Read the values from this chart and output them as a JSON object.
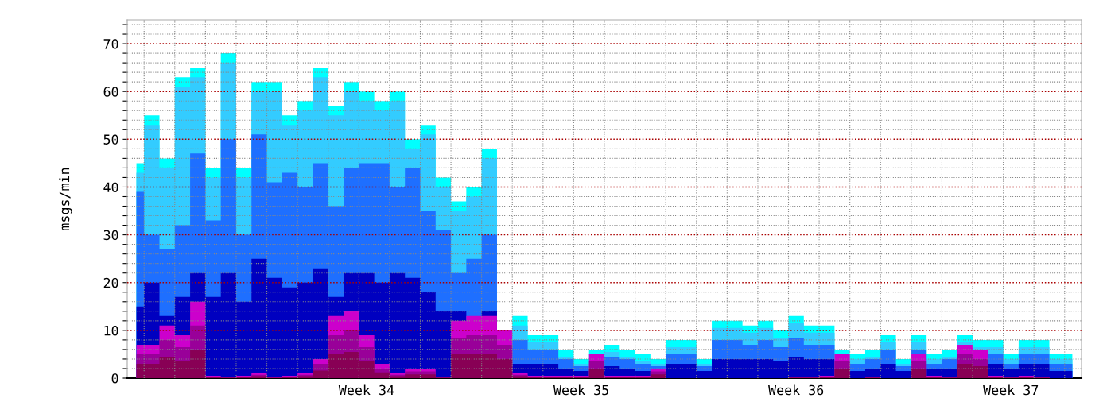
{
  "chart_data": {
    "type": "area",
    "ylabel": "msgs/min",
    "categories": [
      null,
      null,
      null,
      null,
      null,
      null,
      null,
      null,
      null,
      null,
      null,
      null,
      null,
      null,
      null,
      "Week 34",
      null,
      null,
      null,
      null,
      null,
      null,
      null,
      null,
      null,
      null,
      null,
      null,
      null,
      "Week 35",
      null,
      null,
      null,
      null,
      null,
      null,
      null,
      null,
      null,
      null,
      null,
      null,
      null,
      "Week 36",
      null,
      null,
      null,
      null,
      null,
      null,
      null,
      null,
      null,
      null,
      null,
      null,
      null,
      "Week 37",
      null,
      null,
      null,
      null
    ],
    "series": [
      {
        "color": "#00ffff",
        "values": [
          45,
          55,
          46,
          63,
          65,
          44,
          68,
          44,
          62,
          62,
          55,
          58,
          65,
          57,
          62,
          60,
          58,
          60,
          50,
          53,
          42,
          37,
          40,
          48,
          null,
          13,
          9,
          9,
          6,
          4,
          6,
          7,
          6,
          5,
          4,
          8,
          8,
          4,
          12,
          12,
          11,
          12,
          10,
          13,
          11,
          11,
          6,
          5,
          6,
          9,
          4,
          9,
          5,
          6,
          9,
          8,
          8,
          5,
          8,
          8,
          5,
          5
        ]
      },
      {
        "color": "#33ccff",
        "values": [
          43,
          53,
          44,
          61,
          63,
          42,
          66,
          42,
          60,
          60,
          53,
          56,
          63,
          55,
          60,
          58,
          56,
          58,
          48,
          51,
          40,
          35,
          38,
          46,
          null,
          11,
          7.5,
          7.5,
          4.5,
          3,
          null,
          5.5,
          4.5,
          3.5,
          3,
          6.5,
          6.5,
          3,
          10.5,
          10.5,
          9.5,
          10.5,
          8.5,
          11.5,
          9.5,
          9.5,
          null,
          4,
          4.5,
          7.5,
          3,
          7.5,
          4,
          4.5,
          7.5,
          6.5,
          6.5,
          4,
          6.5,
          6.5,
          4,
          4
        ]
      },
      {
        "color": "#1e6fff",
        "values": [
          39,
          30,
          27,
          32,
          47,
          33,
          50,
          30,
          51,
          41,
          43,
          40,
          45,
          36,
          44,
          45,
          45,
          40,
          44,
          35,
          31,
          22,
          25,
          30,
          null,
          8,
          6,
          6,
          4,
          2.5,
          null,
          4.5,
          4,
          3,
          2.5,
          5,
          5,
          2.5,
          8,
          8,
          7,
          8,
          6.5,
          8.5,
          7,
          7,
          null,
          3,
          4,
          6,
          2.5,
          6,
          3,
          4,
          null,
          null,
          5,
          3,
          5,
          5,
          3,
          3
        ]
      },
      {
        "color": "#0000c0",
        "values": [
          15,
          20,
          13,
          17,
          22,
          17,
          22,
          16,
          25,
          21,
          19,
          20,
          23,
          17,
          22,
          22,
          20,
          22,
          21,
          18,
          14,
          14,
          null,
          14,
          null,
          3,
          3,
          3,
          2,
          1.5,
          null,
          2.5,
          2,
          1.5,
          null,
          3,
          3,
          1.5,
          4,
          4,
          4,
          4,
          3.5,
          4.5,
          4,
          4,
          null,
          1.5,
          2,
          3,
          1.5,
          null,
          2,
          2,
          null,
          null,
          3,
          2,
          3,
          3,
          1.5,
          1.5
        ]
      },
      {
        "color": "#cc00cc",
        "values": [
          7,
          7,
          11,
          9,
          16,
          0.5,
          0.3,
          0.5,
          1,
          0.2,
          0.5,
          1,
          4,
          13,
          14,
          9,
          3,
          1,
          2,
          2,
          0.3,
          12,
          13,
          13,
          10,
          1,
          0.5,
          0.5,
          0.5,
          0.5,
          5,
          0.5,
          0.5,
          0.5,
          2,
          0,
          0,
          0,
          0,
          0,
          0,
          0,
          0,
          0.3,
          0.3,
          0.5,
          5,
          0,
          0.3,
          0,
          0,
          5,
          0.5,
          0.3,
          7,
          6,
          0.5,
          0.3,
          0.5,
          0.3,
          0,
          0
        ]
      },
      {
        "color": "#990099",
        "values": [
          5,
          5,
          8,
          6.5,
          11,
          0.3,
          0.2,
          0.3,
          0.7,
          0.1,
          0.3,
          0.7,
          3,
          9,
          10,
          6.5,
          2,
          0.7,
          1.4,
          1.4,
          0.2,
          8.5,
          9,
          9,
          7,
          0.7,
          0.3,
          0.3,
          0.3,
          0.3,
          3.5,
          0.3,
          0.3,
          0.3,
          1.4,
          0,
          0,
          0,
          0,
          0,
          0,
          0,
          0,
          0.2,
          0.2,
          0.3,
          3.5,
          0,
          0.2,
          0,
          0,
          3.5,
          0.3,
          0.2,
          5,
          4,
          0.3,
          0.2,
          0.3,
          0.2,
          0,
          0
        ]
      },
      {
        "color": "#880055",
        "values": [
          3,
          3,
          4.5,
          3.5,
          6,
          0.2,
          0.1,
          0.2,
          0.4,
          0.1,
          0.2,
          0.4,
          1.6,
          5,
          5.5,
          3.5,
          1.2,
          0.4,
          0.8,
          0.8,
          0.1,
          5,
          5,
          5,
          4,
          0.4,
          0.2,
          0.2,
          0.2,
          0.2,
          2,
          0.2,
          0.2,
          0.2,
          0.8,
          0,
          0,
          0,
          0,
          0,
          0,
          0,
          0,
          0.1,
          0.1,
          0.2,
          2,
          0,
          0.1,
          0,
          0,
          2,
          0.2,
          0.1,
          3,
          2.5,
          0.2,
          0.1,
          0.2,
          0.1,
          0,
          0
        ]
      }
    ],
    "ylim": [
      0,
      75
    ],
    "yticks": [
      0,
      {
        "value": 2,
        "label": null
      },
      {
        "value": 4,
        "label": null
      },
      {
        "value": 6,
        "label": null
      },
      {
        "value": 8,
        "label": null
      },
      10,
      {
        "value": 12,
        "label": null
      },
      {
        "value": 14,
        "label": null
      },
      {
        "value": 16,
        "label": null
      },
      {
        "value": 18,
        "label": null
      },
      20,
      {
        "value": 22,
        "label": null
      },
      {
        "value": 24,
        "label": null
      },
      {
        "value": 26,
        "label": null
      },
      {
        "value": 28,
        "label": null
      },
      30,
      {
        "value": 32,
        "label": null
      },
      {
        "value": 34,
        "label": null
      },
      {
        "value": 36,
        "label": null
      },
      {
        "value": 38,
        "label": null
      },
      40,
      {
        "value": 42,
        "label": null
      },
      {
        "value": 44,
        "label": null
      },
      {
        "value": 46,
        "label": null
      },
      {
        "value": 48,
        "label": null
      },
      50,
      {
        "value": 52,
        "label": null
      },
      {
        "value": 54,
        "label": null
      },
      {
        "value": 56,
        "label": null
      },
      {
        "value": 58,
        "label": null
      },
      60,
      {
        "value": 62,
        "label": null
      },
      {
        "value": 64,
        "label": null
      },
      {
        "value": 66,
        "label": null
      },
      {
        "value": 68,
        "label": null
      },
      70,
      {
        "value": 72,
        "label": null
      },
      {
        "value": 74,
        "label": null
      }
    ],
    "grid": true
  }
}
